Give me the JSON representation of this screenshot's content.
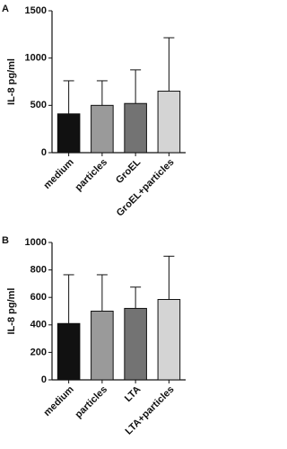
{
  "chart_data": [
    {
      "type": "bar",
      "panel_label": "A",
      "y_label": "IL-8 pg/ml",
      "categories": [
        "medium",
        "particles",
        "GroEL",
        "GroEL+particles"
      ],
      "values": [
        410,
        500,
        520,
        650
      ],
      "errors": [
        350,
        260,
        355,
        565
      ],
      "colors": [
        "#111111",
        "#9a9a9a",
        "#737373",
        "#d4d4d4"
      ],
      "ylim": [
        0,
        1500
      ],
      "yticks": [
        0,
        500,
        1000,
        1500
      ]
    },
    {
      "type": "bar",
      "panel_label": "B",
      "y_label": "IL-8 pg/ml",
      "categories": [
        "medium",
        "particles",
        "LTA",
        "LTA+particles"
      ],
      "values": [
        410,
        500,
        520,
        585
      ],
      "errors": [
        355,
        265,
        155,
        315
      ],
      "colors": [
        "#111111",
        "#9a9a9a",
        "#737373",
        "#d4d4d4"
      ],
      "ylim": [
        0,
        1000
      ],
      "yticks": [
        0,
        200,
        400,
        600,
        800,
        1000
      ]
    }
  ]
}
